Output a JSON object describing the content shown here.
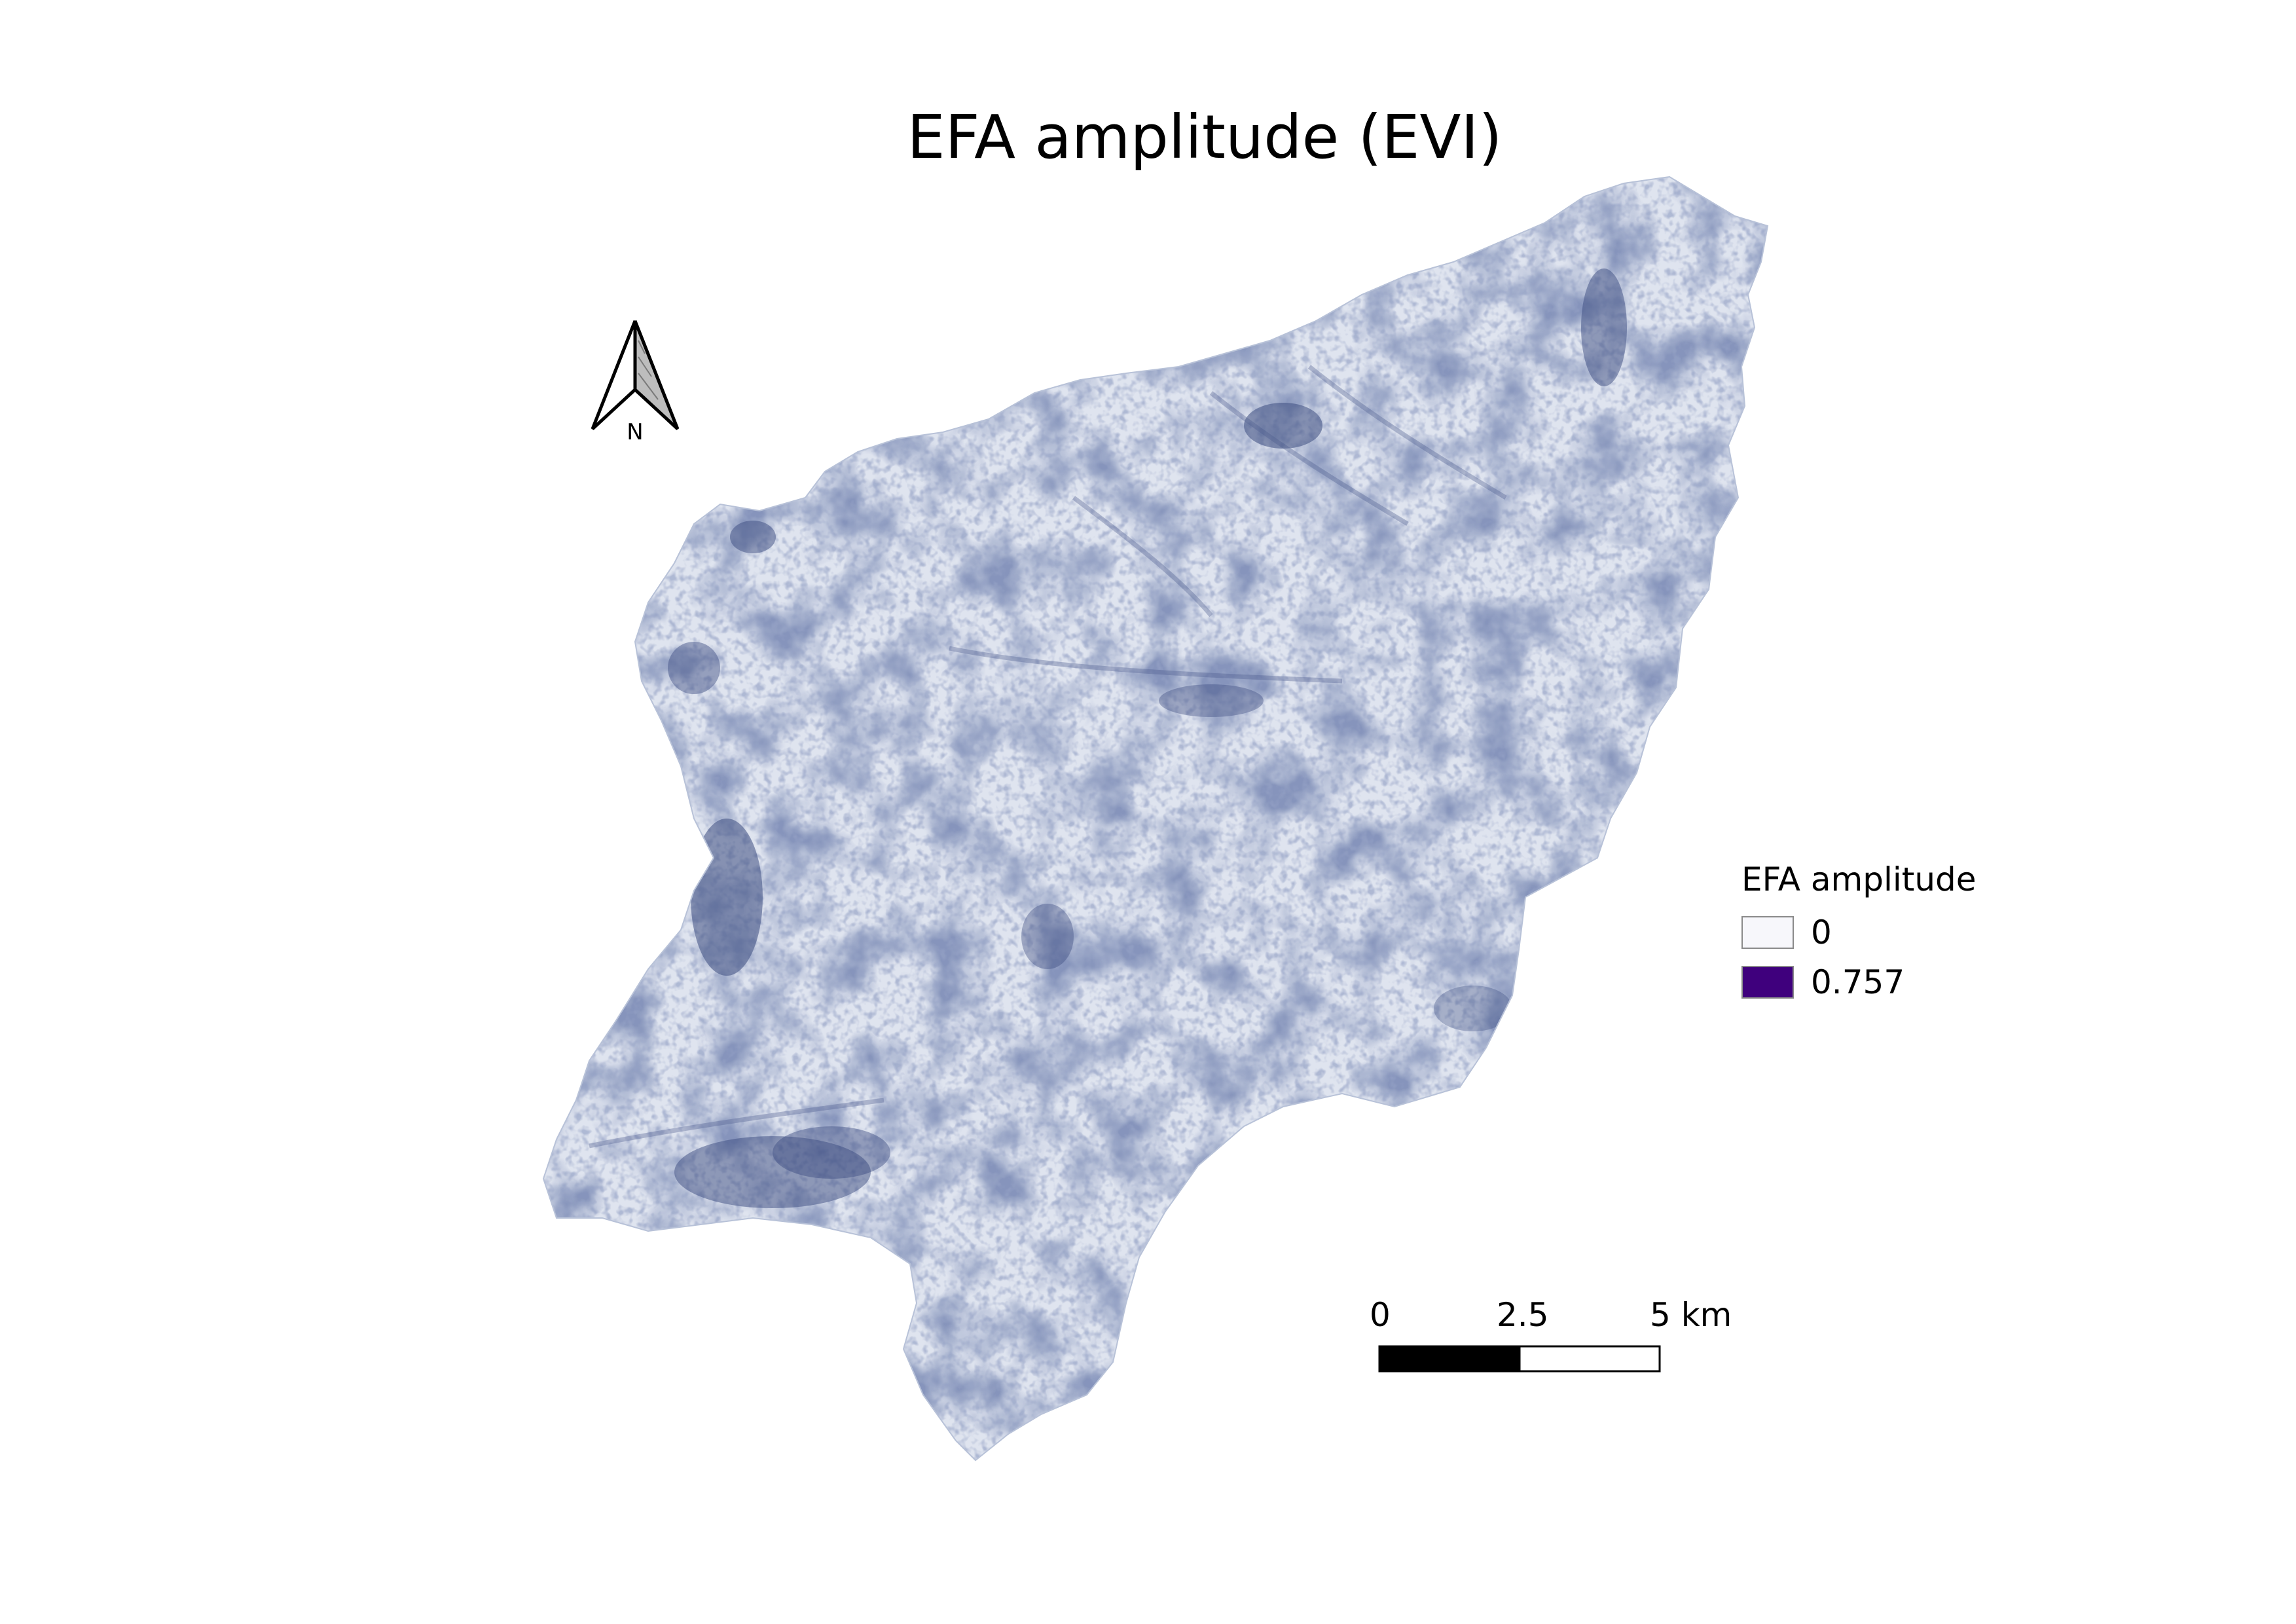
{
  "title": "EFA amplitude (EVI)",
  "north_arrow": {
    "label": "N",
    "icon": "north-arrow-icon"
  },
  "legend": {
    "title": "EFA amplitude",
    "items": [
      {
        "label": "0",
        "color": "#f7f7fb"
      },
      {
        "label": "0.757",
        "color": "#3f007d"
      }
    ]
  },
  "scale_bar": {
    "labels": [
      "0",
      "2.5",
      "5 km"
    ],
    "segment_colors": [
      "#000000",
      "#ffffff"
    ]
  },
  "colors": {
    "ramp_low": "#f7f7fb",
    "ramp_high": "#3f007d",
    "terrain_tint": "#c9d2e3",
    "terrain_dark": "#3c4c80"
  }
}
